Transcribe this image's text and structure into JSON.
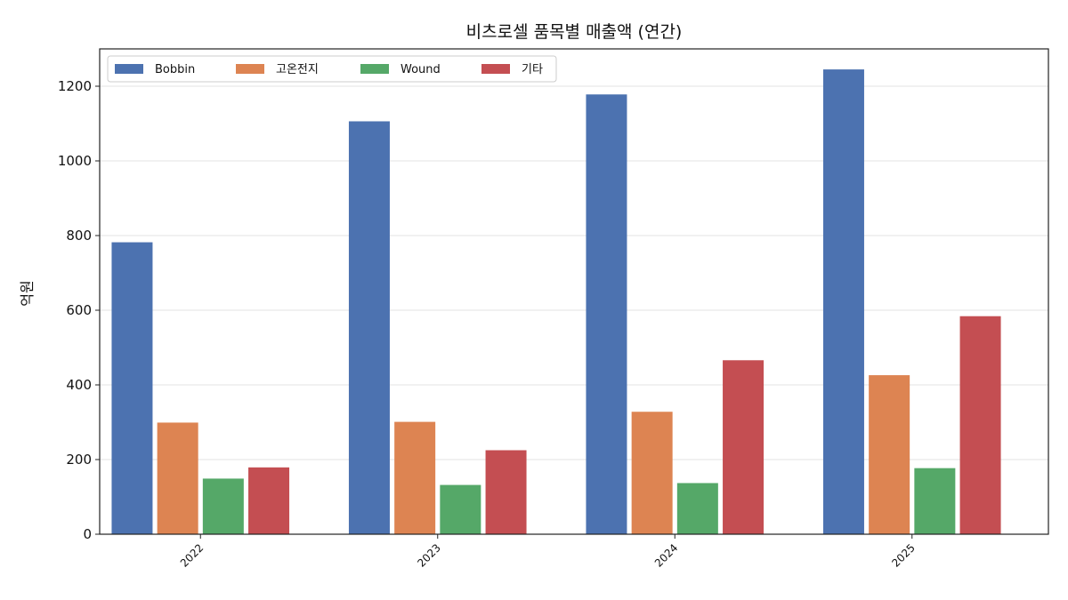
{
  "chart_data": {
    "type": "bar",
    "title": "비츠로셀 품목별 매출액 (연간)",
    "xlabel": "",
    "ylabel": "억원",
    "ylim": [
      0,
      1300
    ],
    "yticks": [
      0,
      200,
      400,
      600,
      800,
      1000,
      1200
    ],
    "categories": [
      "2022",
      "2023",
      "2024",
      "2025"
    ],
    "series": [
      {
        "name": "Bobbin",
        "color": "#4c72b0",
        "values": [
          782,
          1106,
          1178,
          1245
        ]
      },
      {
        "name": "고온전지",
        "color": "#dd8452",
        "values": [
          299,
          301,
          328,
          426
        ]
      },
      {
        "name": "Wound",
        "color": "#55a868",
        "values": [
          149,
          132,
          137,
          177
        ]
      },
      {
        "name": "기타",
        "color": "#c44e52",
        "values": [
          179,
          225,
          466,
          584
        ]
      }
    ],
    "grid": "horizontal",
    "legend_position": "top-left"
  }
}
